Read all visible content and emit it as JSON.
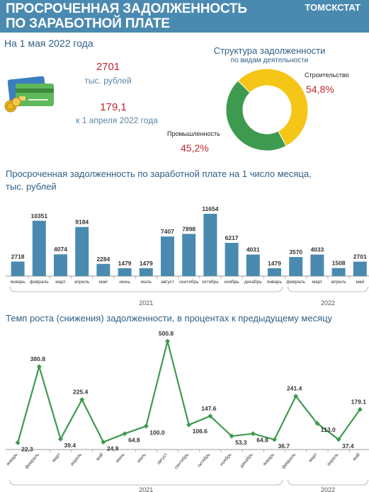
{
  "header": {
    "title_line1": "ПРОСРОЧЕННАЯ ЗАДОЛЖЕННОСТЬ",
    "title_line2": "ПО ЗАРАБОТНОЙ ПЛАТЕ",
    "brand": "ТОМСКСТАТ"
  },
  "summary": {
    "date": "На 1 мая 2022 года",
    "total_value": "2701",
    "total_unit": "тыс. рублей",
    "change_value": "179,1",
    "change_label": "к 1 апреля 2022 года"
  },
  "colors": {
    "header": "#4b8ab0",
    "bars": "#4b8ab0",
    "line": "#3e9a4f",
    "accent_red": "#c0272d",
    "pie_construction": "#f5c518",
    "pie_industry": "#3e9a4f"
  },
  "icons": [
    "credit-cards-icon",
    "coins-icon"
  ],
  "chart_data": [
    {
      "type": "pie",
      "title": "Структура задолженности",
      "subtitle": "по видам деятельности",
      "labels": [
        "Строительство",
        "Промышленность"
      ],
      "values": [
        54.8,
        45.2
      ],
      "value_labels": [
        "54,8%",
        "45,2%"
      ]
    },
    {
      "type": "bar",
      "title": "Просроченная задолженность по заработной плате на 1 число месяца,",
      "title_line2": "тыс. рублей",
      "categories": [
        "январь",
        "февраль",
        "март",
        "апрель",
        "май",
        "июнь",
        "июль",
        "август",
        "сентябрь",
        "октябрь",
        "ноябрь",
        "декабрь",
        "январь",
        "февраль",
        "март",
        "апрель",
        "май"
      ],
      "values": [
        2718,
        10351,
        4074,
        9184,
        2284,
        1479,
        1479,
        7407,
        7898,
        11654,
        6217,
        4031,
        1479,
        3570,
        4033,
        1508,
        2701
      ],
      "years": [
        {
          "label": "2021",
          "from": 0,
          "to": 12
        },
        {
          "label": "2022",
          "from": 13,
          "to": 16
        }
      ]
    },
    {
      "type": "line",
      "title": "Темп роста (снижения) задолженности, в процентах к предыдущему месяцу",
      "categories": [
        "январь",
        "февраль",
        "март",
        "апрель",
        "май",
        "июнь",
        "июль",
        "август",
        "сентябрь",
        "октябрь",
        "ноябрь",
        "декабрь",
        "январь",
        "февраль",
        "март",
        "апрель",
        "май"
      ],
      "values": [
        22.3,
        380.8,
        39.4,
        225.4,
        24.9,
        64.8,
        100.0,
        500.8,
        106.6,
        147.6,
        53.3,
        64.8,
        36.7,
        241.4,
        113.0,
        37.4,
        179.1
      ],
      "value_labels": [
        "22.3",
        "380.8",
        "39.4",
        "225.4",
        "24.9",
        "64.8",
        "100.0",
        "500.8",
        "106.6",
        "147.6",
        "53.3",
        "64.8",
        "36.7",
        "241.4",
        "113.0",
        "37.4",
        "179.1"
      ],
      "years": [
        {
          "label": "2021",
          "from": 0,
          "to": 12
        },
        {
          "label": "2022",
          "from": 13,
          "to": 16
        }
      ]
    }
  ]
}
